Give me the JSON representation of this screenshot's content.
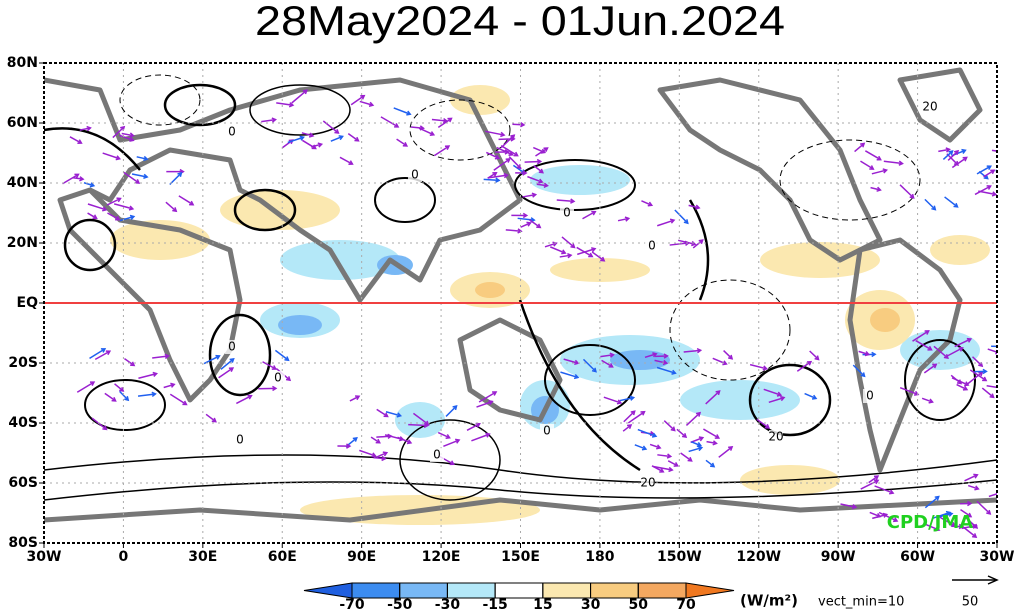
{
  "title": "28May2024 - 01Jun.2024",
  "map": {
    "x_labels": [
      "30W",
      "0",
      "30E",
      "60E",
      "90E",
      "120E",
      "150E",
      "180",
      "150W",
      "120W",
      "90W",
      "60W",
      "30W"
    ],
    "y_labels": [
      "80N",
      "60N",
      "40N",
      "20N",
      "EQ",
      "20S",
      "40S",
      "60S",
      "80S"
    ],
    "contour_labels": [
      "0",
      "0",
      "0",
      "0",
      "0",
      "0",
      "0",
      "0",
      "0",
      "0",
      "20",
      "20",
      "20"
    ],
    "credit": "CPD/JMA"
  },
  "colorbar": {
    "ticks": [
      -70,
      -50,
      -30,
      -15,
      15,
      30,
      50,
      70
    ],
    "colors": [
      "#1f5fe0",
      "#3c8cf0",
      "#78b8f5",
      "#b4e8f8",
      "#ffffff",
      "#fbe8b0",
      "#f8cc80",
      "#f4a860",
      "#f07820"
    ],
    "units": "(W/m²)"
  },
  "vector": {
    "min_label": "vect_min=10",
    "scale_label": "50"
  }
}
